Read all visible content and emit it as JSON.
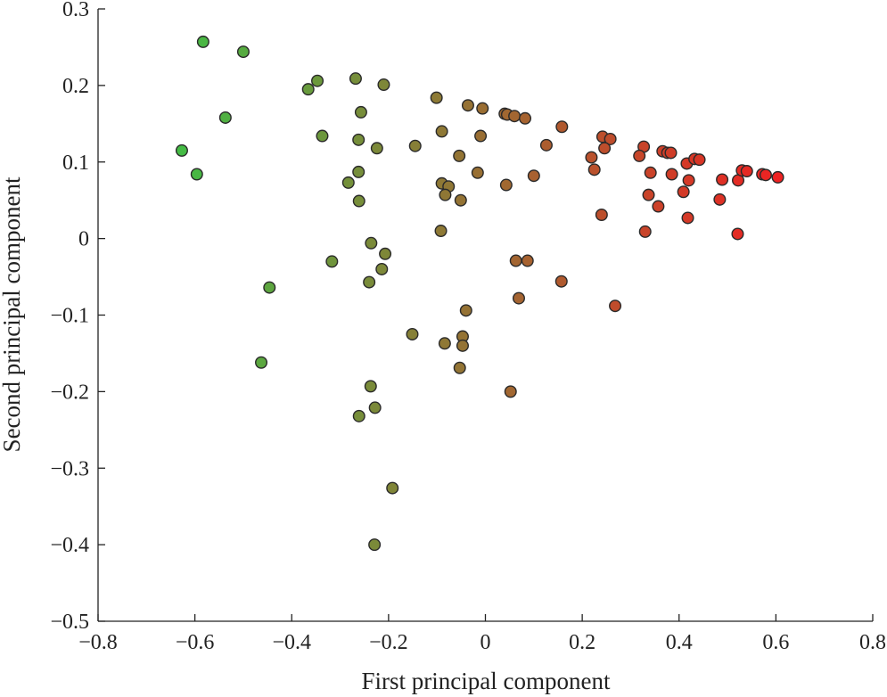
{
  "chart_data": {
    "type": "scatter",
    "title": "",
    "xlabel": "First principal component",
    "ylabel": "Second principal component",
    "xlim": [
      -0.8,
      0.8
    ],
    "ylim": [
      -0.5,
      0.3
    ],
    "xticks": [
      -0.8,
      -0.6,
      -0.4,
      -0.2,
      0,
      0.2,
      0.4,
      0.6,
      0.8
    ],
    "yticks": [
      -0.5,
      -0.4,
      -0.3,
      -0.2,
      -0.1,
      0,
      0.1,
      0.2,
      0.3
    ],
    "xtick_labels": [
      "−0.8",
      "−0.6",
      "−0.4",
      "−0.2",
      "0",
      "0.2",
      "0.4",
      "0.6",
      "0.8"
    ],
    "ytick_labels": [
      "−0.5",
      "−0.4",
      "−0.3",
      "−0.2",
      "−0.1",
      "0",
      "0.1",
      "0.2",
      "0.3"
    ],
    "grid": false,
    "color_gradient": {
      "low_x": "#44bb44",
      "high_x": "#ee2222"
    },
    "points": [
      {
        "x": -0.583,
        "y": 0.257
      },
      {
        "x": -0.5,
        "y": 0.244
      },
      {
        "x": -0.537,
        "y": 0.158
      },
      {
        "x": -0.627,
        "y": 0.115
      },
      {
        "x": -0.596,
        "y": 0.084
      },
      {
        "x": -0.446,
        "y": -0.064
      },
      {
        "x": -0.463,
        "y": -0.162
      },
      {
        "x": -0.366,
        "y": 0.195
      },
      {
        "x": -0.347,
        "y": 0.206
      },
      {
        "x": -0.268,
        "y": 0.209
      },
      {
        "x": -0.21,
        "y": 0.201
      },
      {
        "x": -0.337,
        "y": 0.134
      },
      {
        "x": -0.257,
        "y": 0.165
      },
      {
        "x": -0.262,
        "y": 0.129
      },
      {
        "x": -0.224,
        "y": 0.118
      },
      {
        "x": -0.262,
        "y": 0.087
      },
      {
        "x": -0.283,
        "y": 0.073
      },
      {
        "x": -0.261,
        "y": 0.049
      },
      {
        "x": -0.317,
        "y": -0.03
      },
      {
        "x": -0.236,
        "y": -0.006
      },
      {
        "x": -0.207,
        "y": -0.02
      },
      {
        "x": -0.214,
        "y": -0.04
      },
      {
        "x": -0.24,
        "y": -0.057
      },
      {
        "x": -0.237,
        "y": -0.193
      },
      {
        "x": -0.228,
        "y": -0.221
      },
      {
        "x": -0.261,
        "y": -0.232
      },
      {
        "x": -0.192,
        "y": -0.326
      },
      {
        "x": -0.229,
        "y": -0.4
      },
      {
        "x": -0.145,
        "y": 0.121
      },
      {
        "x": -0.151,
        "y": -0.125
      },
      {
        "x": -0.101,
        "y": 0.184
      },
      {
        "x": -0.09,
        "y": 0.14
      },
      {
        "x": -0.09,
        "y": 0.072
      },
      {
        "x": -0.076,
        "y": 0.068
      },
      {
        "x": -0.083,
        "y": 0.057
      },
      {
        "x": -0.092,
        "y": 0.01
      },
      {
        "x": -0.084,
        "y": -0.137
      },
      {
        "x": -0.054,
        "y": 0.108
      },
      {
        "x": -0.051,
        "y": 0.05
      },
      {
        "x": -0.036,
        "y": 0.174
      },
      {
        "x": -0.04,
        "y": -0.094
      },
      {
        "x": -0.047,
        "y": -0.128
      },
      {
        "x": -0.047,
        "y": -0.14
      },
      {
        "x": -0.053,
        "y": -0.169
      },
      {
        "x": -0.006,
        "y": 0.17
      },
      {
        "x": -0.01,
        "y": 0.134
      },
      {
        "x": -0.016,
        "y": 0.086
      },
      {
        "x": 0.04,
        "y": 0.163
      },
      {
        "x": 0.045,
        "y": 0.162
      },
      {
        "x": 0.06,
        "y": 0.16
      },
      {
        "x": 0.082,
        "y": 0.157
      },
      {
        "x": 0.043,
        "y": 0.07
      },
      {
        "x": 0.063,
        "y": -0.029
      },
      {
        "x": 0.087,
        "y": -0.029
      },
      {
        "x": 0.069,
        "y": -0.078
      },
      {
        "x": 0.052,
        "y": -0.2
      },
      {
        "x": 0.1,
        "y": 0.082
      },
      {
        "x": 0.126,
        "y": 0.122
      },
      {
        "x": 0.158,
        "y": 0.146
      },
      {
        "x": 0.157,
        "y": -0.056
      },
      {
        "x": 0.268,
        "y": -0.088
      },
      {
        "x": 0.242,
        "y": 0.133
      },
      {
        "x": 0.258,
        "y": 0.13
      },
      {
        "x": 0.246,
        "y": 0.118
      },
      {
        "x": 0.219,
        "y": 0.106
      },
      {
        "x": 0.225,
        "y": 0.09
      },
      {
        "x": 0.24,
        "y": 0.031
      },
      {
        "x": 0.327,
        "y": 0.12
      },
      {
        "x": 0.318,
        "y": 0.108
      },
      {
        "x": 0.341,
        "y": 0.086
      },
      {
        "x": 0.337,
        "y": 0.057
      },
      {
        "x": 0.33,
        "y": 0.009
      },
      {
        "x": 0.366,
        "y": 0.114
      },
      {
        "x": 0.376,
        "y": 0.112
      },
      {
        "x": 0.383,
        "y": 0.112
      },
      {
        "x": 0.385,
        "y": 0.084
      },
      {
        "x": 0.357,
        "y": 0.042
      },
      {
        "x": 0.416,
        "y": 0.098
      },
      {
        "x": 0.432,
        "y": 0.104
      },
      {
        "x": 0.442,
        "y": 0.103
      },
      {
        "x": 0.42,
        "y": 0.076
      },
      {
        "x": 0.409,
        "y": 0.061
      },
      {
        "x": 0.418,
        "y": 0.027
      },
      {
        "x": 0.489,
        "y": 0.077
      },
      {
        "x": 0.484,
        "y": 0.051
      },
      {
        "x": 0.522,
        "y": 0.076
      },
      {
        "x": 0.53,
        "y": 0.089
      },
      {
        "x": 0.54,
        "y": 0.088
      },
      {
        "x": 0.572,
        "y": 0.084
      },
      {
        "x": 0.579,
        "y": 0.083
      },
      {
        "x": 0.604,
        "y": 0.08
      },
      {
        "x": 0.521,
        "y": 0.006
      }
    ]
  }
}
